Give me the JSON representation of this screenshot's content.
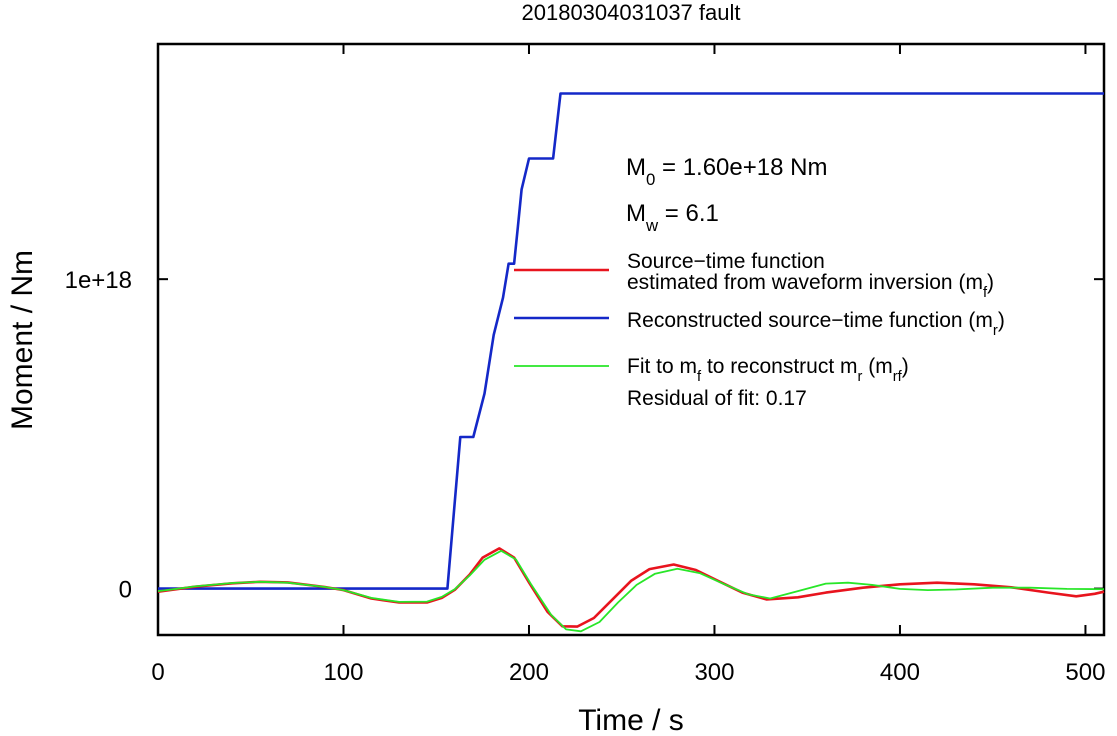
{
  "chart_data": {
    "type": "line",
    "title": "20180304031037 fault",
    "xlabel": "Time / s",
    "ylabel": "Moment / Nm",
    "xlim": [
      0,
      510
    ],
    "ylim": [
      -1.5e+17,
      1.76e+18
    ],
    "x_ticks": [
      0,
      100,
      200,
      300,
      400,
      500
    ],
    "x_tick_labels": [
      "0",
      "100",
      "200",
      "300",
      "400",
      "500"
    ],
    "y_ticks": [
      0,
      1e+18
    ],
    "y_tick_labels": [
      "0",
      "1e+18"
    ],
    "grid": false,
    "legend_position": "right",
    "annotations": {
      "m0_prefix": "M",
      "m0_sub": "0",
      "m0_value": " = 1.60e+18 Nm",
      "mw_prefix": "M",
      "mw_sub": "w",
      "mw_value": " = 6.1",
      "residual": "Residual of fit: 0.17"
    },
    "legend": [
      {
        "line1": "Source−time function",
        "line2": "estimated from waveform inversion (m",
        "line2_sub": "f",
        "line2_end": ")",
        "color": "#e8141e"
      },
      {
        "line1": "Reconstructed source−time function (m",
        "sub": "r",
        "end": ")",
        "color": "#1428c8"
      },
      {
        "line1": "Fit to m",
        "sub1": "f",
        "mid": " to reconstruct m",
        "sub2": "r",
        "mid2": " (m",
        "sub3": "rf",
        "end": ")",
        "color": "#28e628"
      }
    ],
    "series": [
      {
        "color": "#1428c8",
        "width": 2.6,
        "points": [
          [
            0,
            0
          ],
          [
            156,
            0
          ],
          [
            163,
            4.9e+17
          ],
          [
            170,
            4.9e+17
          ],
          [
            176,
            6.3e+17
          ],
          [
            181,
            8.2e+17
          ],
          [
            186,
            9.4e+17
          ],
          [
            189,
            1.05e+18
          ],
          [
            192,
            1.05e+18
          ],
          [
            194,
            1.17e+18
          ],
          [
            196,
            1.29e+18
          ],
          [
            200,
            1.39e+18
          ],
          [
            213,
            1.39e+18
          ],
          [
            217,
            1.6e+18
          ],
          [
            510,
            1.6e+18
          ]
        ]
      },
      {
        "color": "#e8141e",
        "width": 2.6,
        "points": [
          [
            0,
            -1e+16
          ],
          [
            10,
            -2000000000000000.0
          ],
          [
            20,
            6000000000000000.0
          ],
          [
            40,
            1.7e+16
          ],
          [
            55,
            2.2e+16
          ],
          [
            70,
            2e+16
          ],
          [
            90,
            5000000000000000.0
          ],
          [
            100,
            -5000000000000000.0
          ],
          [
            115,
            -3.2e+16
          ],
          [
            130,
            -4.5e+16
          ],
          [
            145,
            -4.5e+16
          ],
          [
            153,
            -3e+16
          ],
          [
            160,
            -4000000000000000.0
          ],
          [
            168,
            4.5e+16
          ],
          [
            175,
            1e+17
          ],
          [
            184,
            1.3e+17
          ],
          [
            192,
            1e+17
          ],
          [
            200,
            2e+16
          ],
          [
            210,
            -7.5e+16
          ],
          [
            218,
            -1.22e+17
          ],
          [
            226,
            -1.23e+17
          ],
          [
            235,
            -9.5e+16
          ],
          [
            245,
            -3.5e+16
          ],
          [
            255,
            2.5e+16
          ],
          [
            265,
            6.3e+16
          ],
          [
            278,
            7.8e+16
          ],
          [
            290,
            6e+16
          ],
          [
            302,
            2.5e+16
          ],
          [
            315,
            -1.3e+16
          ],
          [
            328,
            -3.5e+16
          ],
          [
            345,
            -2.8e+16
          ],
          [
            360,
            -1.3e+16
          ],
          [
            380,
            3000000000000000.0
          ],
          [
            400,
            1.4e+16
          ],
          [
            420,
            1.9e+16
          ],
          [
            440,
            1.4e+16
          ],
          [
            460,
            4000000000000000.0
          ],
          [
            480,
            -1.3e+16
          ],
          [
            495,
            -2.5e+16
          ],
          [
            505,
            -1.7e+16
          ],
          [
            510,
            -1e+16
          ]
        ]
      },
      {
        "color": "#28e628",
        "width": 1.8,
        "points": [
          [
            0,
            -8000000000000000.0
          ],
          [
            10,
            -1000000000000000.0
          ],
          [
            20,
            7000000000000000.0
          ],
          [
            40,
            1.8e+16
          ],
          [
            55,
            2.2e+16
          ],
          [
            70,
            1.9e+16
          ],
          [
            90,
            5000000000000000.0
          ],
          [
            100,
            -5000000000000000.0
          ],
          [
            115,
            -3e+16
          ],
          [
            130,
            -4.3e+16
          ],
          [
            145,
            -4.2e+16
          ],
          [
            153,
            -2.7e+16
          ],
          [
            160,
            -2000000000000000.0
          ],
          [
            168,
            4.2e+16
          ],
          [
            176,
            9.3e+16
          ],
          [
            185,
            1.22e+17
          ],
          [
            193,
            9.4e+16
          ],
          [
            201,
            1.5e+16
          ],
          [
            212,
            -8.5e+16
          ],
          [
            220,
            -1.32e+17
          ],
          [
            228,
            -1.38e+17
          ],
          [
            238,
            -1.08e+17
          ],
          [
            248,
            -4.5e+16
          ],
          [
            258,
            1.2e+16
          ],
          [
            268,
            4.8e+16
          ],
          [
            280,
            6.4e+16
          ],
          [
            292,
            5e+16
          ],
          [
            305,
            1.5e+16
          ],
          [
            318,
            -1.8e+16
          ],
          [
            330,
            -3.2e+16
          ],
          [
            345,
            -8000000000000000.0
          ],
          [
            360,
            1.6e+16
          ],
          [
            372,
            1.9e+16
          ],
          [
            385,
            1.2e+16
          ],
          [
            400,
            -1000000000000000.0
          ],
          [
            415,
            -5000000000000000.0
          ],
          [
            430,
            -3000000000000000.0
          ],
          [
            450,
            3000000000000000.0
          ],
          [
            470,
            3000000000000000.0
          ],
          [
            490,
            -1000000000000000.0
          ],
          [
            510,
            -2000000000000000.0
          ]
        ]
      }
    ]
  }
}
